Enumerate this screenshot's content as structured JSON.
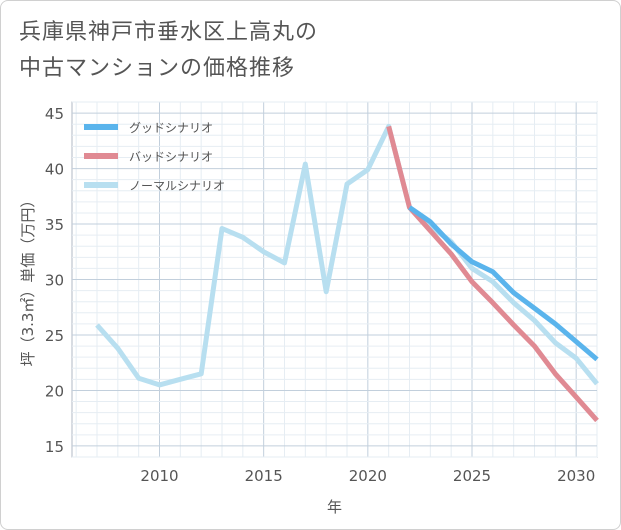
{
  "title": {
    "line1": "兵庫県神戸市垂水区上高丸の",
    "line2": "中古マンションの価格推移"
  },
  "chart_data": {
    "type": "line",
    "xlabel": "年",
    "ylabel": "坪（3.3㎡）単価（万円）",
    "xlim": [
      2005.8,
      2031
    ],
    "ylim": [
      14,
      46
    ],
    "xticks": [
      2010,
      2015,
      2020,
      2025,
      2030
    ],
    "yticks": [
      15,
      20,
      25,
      30,
      35,
      40,
      45
    ],
    "grid": true,
    "legend_position": "top-left",
    "series": [
      {
        "name": "グッドシナリオ",
        "color": "#5ab4ec",
        "x": [
          2022,
          2023,
          2024,
          2025,
          2026,
          2027,
          2028,
          2029,
          2030,
          2031
        ],
        "values": [
          36.5,
          35.2,
          33.2,
          31.6,
          30.7,
          28.8,
          27.4,
          26.0,
          24.4,
          22.8
        ]
      },
      {
        "name": "バッドシナリオ",
        "color": "#e08a93",
        "x": [
          2021,
          2022,
          2023,
          2024,
          2025,
          2026,
          2027,
          2028,
          2029,
          2030,
          2031
        ],
        "values": [
          43.8,
          36.5,
          34.4,
          32.3,
          29.8,
          27.9,
          25.9,
          24.0,
          21.5,
          19.4,
          17.3
        ]
      },
      {
        "name": "ノーマルシナリオ",
        "color": "#b8dff0",
        "x": [
          2007,
          2008,
          2009,
          2010,
          2011,
          2012,
          2013,
          2014,
          2015,
          2016,
          2017,
          2018,
          2019,
          2020,
          2021,
          2022,
          2023,
          2024,
          2025,
          2026,
          2027,
          2028,
          2029,
          2030,
          2031
        ],
        "values": [
          25.9,
          23.8,
          21.1,
          20.5,
          21.0,
          21.5,
          34.6,
          33.8,
          32.5,
          31.5,
          40.4,
          28.9,
          38.6,
          39.9,
          43.8,
          36.5,
          34.8,
          33.4,
          31.0,
          29.8,
          27.9,
          26.3,
          24.3,
          22.9,
          20.6
        ]
      }
    ]
  }
}
